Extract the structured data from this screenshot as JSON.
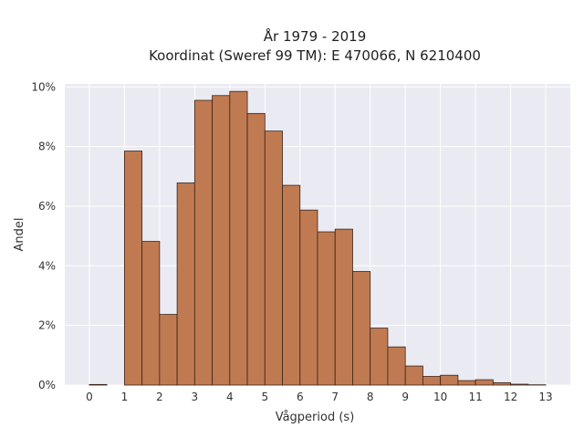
{
  "chart_data": {
    "type": "bar",
    "title_line1": "År 1979 - 2019",
    "title_line2": "Koordinat (Sweref 99 TM): E 470066, N 6210400",
    "xlabel": "Vågperiod (s)",
    "ylabel": "Andel",
    "bin_width": 0.5,
    "bin_starts": [
      0,
      0.5,
      1,
      1.5,
      2,
      2.5,
      3,
      3.5,
      4,
      4.5,
      5,
      5.5,
      6,
      6.5,
      7,
      7.5,
      8,
      8.5,
      9,
      9.5,
      10,
      10.5,
      11,
      11.5,
      12,
      12.5
    ],
    "values": [
      0.02,
      0,
      7.85,
      4.82,
      2.37,
      6.78,
      9.55,
      9.71,
      9.85,
      9.11,
      8.52,
      6.7,
      5.87,
      5.14,
      5.23,
      3.81,
      1.91,
      1.28,
      0.64,
      0.29,
      0.33,
      0.15,
      0.18,
      0.08,
      0.03,
      0.01
    ],
    "x_ticks": [
      "0",
      "1",
      "2",
      "3",
      "4",
      "5",
      "6",
      "7",
      "8",
      "9",
      "10",
      "11",
      "12",
      "13"
    ],
    "y_ticks": [
      "0%",
      "2%",
      "4%",
      "6%",
      "8%",
      "10%"
    ],
    "xlim": [
      -0.7,
      13.7
    ],
    "ylim": [
      0,
      10.1
    ],
    "bar_color": "#c07a52",
    "edge_color": "#3a2418",
    "background_color": "#eaeaf2",
    "grid": true
  }
}
